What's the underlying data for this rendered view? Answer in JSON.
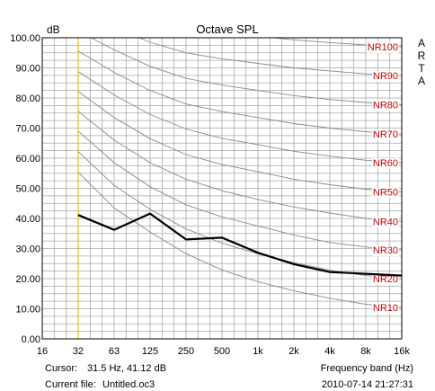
{
  "chart_data": {
    "type": "line",
    "title": "Octave SPL",
    "ylabel": "dB",
    "xlabel": "Frequency band (Hz)",
    "side_label": "ARTA",
    "ylim": [
      0,
      100
    ],
    "y_ticks": [
      "0.00",
      "10.00",
      "20.00",
      "30.00",
      "40.00",
      "50.00",
      "60.00",
      "70.00",
      "80.00",
      "90.00",
      "100.00"
    ],
    "x_ticks": [
      "16",
      "32",
      "63",
      "125",
      "250",
      "500",
      "1k",
      "2k",
      "4k",
      "8k",
      "16k"
    ],
    "grid": true,
    "cursor_hz": 31.5,
    "series": [
      {
        "x": [
          "32",
          "63",
          "125",
          "250",
          "500",
          "1k",
          "2k",
          "4k",
          "8k",
          "16k"
        ],
        "values": [
          41.12,
          36.2,
          41.6,
          33.0,
          33.6,
          28.6,
          24.8,
          22.2,
          21.6,
          21.0
        ]
      }
    ],
    "nr_curves": [
      {
        "name": "NR10",
        "values": [
          55.4,
          43.5,
          35.5,
          28.3,
          22.9,
          19.0,
          16.0,
          13.5,
          11.5,
          10.5
        ]
      },
      {
        "name": "NR20",
        "values": [
          62.2,
          51.0,
          43.0,
          36.5,
          31.8,
          28.2,
          25.3,
          22.8,
          21.0,
          20.0
        ]
      },
      {
        "name": "NR30",
        "values": [
          69.0,
          58.5,
          50.5,
          44.5,
          40.5,
          37.5,
          34.5,
          32.0,
          30.5,
          29.5
        ]
      },
      {
        "name": "NR40",
        "values": [
          75.6,
          66.0,
          58.5,
          53.0,
          49.2,
          46.3,
          43.8,
          41.8,
          40.0,
          39.0
        ]
      },
      {
        "name": "NR50",
        "values": [
          82.2,
          73.5,
          66.5,
          61.2,
          57.9,
          55.5,
          53.0,
          51.2,
          49.7,
          48.8
        ]
      },
      {
        "name": "NR60",
        "values": [
          88.8,
          81.0,
          74.5,
          69.7,
          66.6,
          64.5,
          62.3,
          60.7,
          59.3,
          58.5
        ]
      },
      {
        "name": "NR70",
        "values": [
          95.6,
          88.5,
          82.5,
          78.0,
          75.5,
          73.5,
          71.5,
          70.0,
          68.8,
          68.0
        ]
      },
      {
        "name": "NR80",
        "values": [
          102.2,
          96.0,
          90.5,
          86.5,
          84.3,
          82.5,
          80.8,
          79.5,
          78.5,
          77.8
        ]
      },
      {
        "name": "NR90",
        "values": [
          109.0,
          103.5,
          98.5,
          95.0,
          93.0,
          91.5,
          90.0,
          89.0,
          88.0,
          87.5
        ]
      },
      {
        "name": "NR100",
        "values": [
          115.6,
          111.0,
          106.5,
          103.3,
          101.7,
          100.5,
          99.3,
          98.4,
          97.6,
          97.0
        ]
      }
    ],
    "colors": {
      "grid": "#a9a9a9",
      "nr_curve": "#8a8a8a",
      "nr_label": "#c00000",
      "measurement": "#000000",
      "cursor": "#e8c000",
      "text": "#000000"
    }
  },
  "status": {
    "cursor_label": "Cursor:",
    "cursor_value": "31.5 Hz, 41.12 dB",
    "file_label": "Current file:",
    "file_name": "Untitled.oc3",
    "timestamp": "2010-07-14  21:27:31"
  }
}
